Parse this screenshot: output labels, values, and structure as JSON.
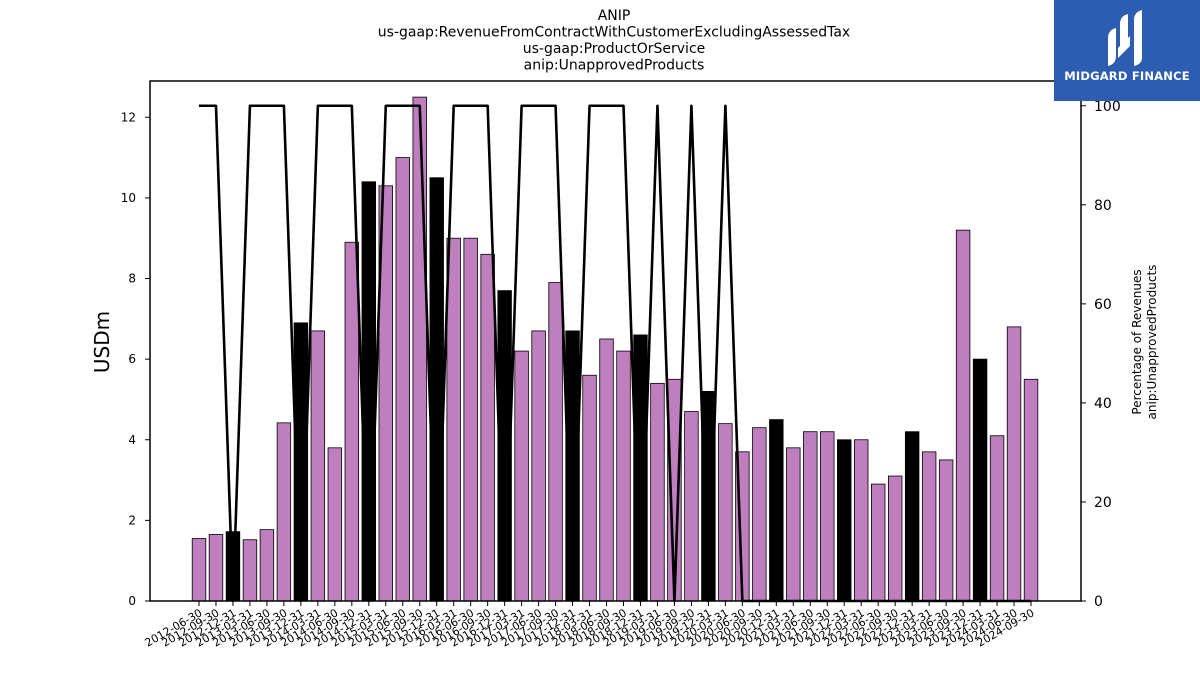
{
  "chart_data": {
    "type": "bar",
    "title_lines": [
      "ANIP",
      "us-gaap:RevenueFromContractWithCustomerExcludingAssessedTax",
      "us-gaap:ProductOrService",
      "anip:UnapprovedProducts"
    ],
    "ylabel": "USDm",
    "ylabel_right": [
      "Percentage of Revenues",
      "anip:UnapprovedProducts"
    ],
    "ylim": [
      0,
      12.9
    ],
    "ylim_right": [
      0,
      105
    ],
    "yticks": [
      0,
      2,
      4,
      6,
      8,
      10,
      12
    ],
    "yticks_right": [
      0,
      20,
      40,
      60,
      80,
      100
    ],
    "categories": [
      "2012-06-30",
      "2012-09-30",
      "2012-12-31",
      "2013-03-31",
      "2013-06-30",
      "2013-09-30",
      "2013-12-31",
      "2014-03-31",
      "2014-06-30",
      "2014-09-30",
      "2014-12-31",
      "2015-03-31",
      "2015-06-30",
      "2015-09-30",
      "2015-12-31",
      "2016-03-31",
      "2016-06-30",
      "2016-09-30",
      "2016-12-31",
      "2017-03-31",
      "2017-06-30",
      "2017-09-30",
      "2017-12-31",
      "2018-03-31",
      "2018-06-30",
      "2018-09-30",
      "2018-12-31",
      "2019-03-31",
      "2019-06-30",
      "2019-09-30",
      "2019-12-31",
      "2020-03-31",
      "2020-06-30",
      "2020-09-30",
      "2020-12-31",
      "2021-03-31",
      "2021-06-30",
      "2021-09-30",
      "2021-12-31",
      "2022-03-31",
      "2022-06-30",
      "2022-09-30",
      "2022-12-31",
      "2023-03-31",
      "2023-06-30",
      "2023-09-30",
      "2023-12-31",
      "2024-03-31",
      "2024-06-30",
      "2024-09-30"
    ],
    "values": [
      1.55,
      1.65,
      1.72,
      1.52,
      1.77,
      4.42,
      6.9,
      6.7,
      3.8,
      8.9,
      10.4,
      10.3,
      11.0,
      12.5,
      10.5,
      9.0,
      9.0,
      8.6,
      7.7,
      6.2,
      6.7,
      7.9,
      6.7,
      5.6,
      6.5,
      6.2,
      6.6,
      5.4,
      5.5,
      4.7,
      5.2,
      4.4,
      3.7,
      4.3,
      4.5,
      3.8,
      4.2,
      4.2,
      4.0,
      4.0,
      2.9,
      3.1,
      4.2,
      3.7,
      3.5,
      9.2,
      6.0,
      4.1,
      6.8,
      5.5
    ],
    "bar_colors": [
      "#bf7fbf",
      "#bf7fbf",
      "#000000",
      "#bf7fbf",
      "#bf7fbf",
      "#bf7fbf",
      "#000000",
      "#bf7fbf",
      "#bf7fbf",
      "#bf7fbf",
      "#000000",
      "#bf7fbf",
      "#bf7fbf",
      "#bf7fbf",
      "#000000",
      "#bf7fbf",
      "#bf7fbf",
      "#bf7fbf",
      "#000000",
      "#bf7fbf",
      "#bf7fbf",
      "#bf7fbf",
      "#000000",
      "#bf7fbf",
      "#bf7fbf",
      "#bf7fbf",
      "#000000",
      "#bf7fbf",
      "#bf7fbf",
      "#bf7fbf",
      "#000000",
      "#bf7fbf",
      "#bf7fbf",
      "#bf7fbf",
      "#000000",
      "#bf7fbf",
      "#bf7fbf",
      "#bf7fbf",
      "#000000",
      "#bf7fbf",
      "#bf7fbf",
      "#bf7fbf",
      "#000000",
      "#bf7fbf",
      "#bf7fbf",
      "#bf7fbf",
      "#000000",
      "#bf7fbf",
      "#bf7fbf",
      "#bf7fbf"
    ],
    "line_series": {
      "axis": "right",
      "color": "#000000",
      "values": [
        100,
        100,
        0,
        100,
        100,
        100,
        0,
        100,
        100,
        100,
        0,
        100,
        100,
        100,
        0,
        100,
        100,
        100,
        0,
        100,
        100,
        100,
        0,
        100,
        100,
        100,
        0,
        100,
        0,
        100,
        0,
        100,
        0,
        0,
        0,
        0,
        0,
        0,
        0,
        0,
        0,
        0,
        0,
        0,
        0,
        0,
        0,
        0,
        0,
        0
      ]
    },
    "grid": false,
    "legend": "none"
  },
  "logo": {
    "text": "MIDGARD FINANCE",
    "color": "#2c5db0"
  }
}
